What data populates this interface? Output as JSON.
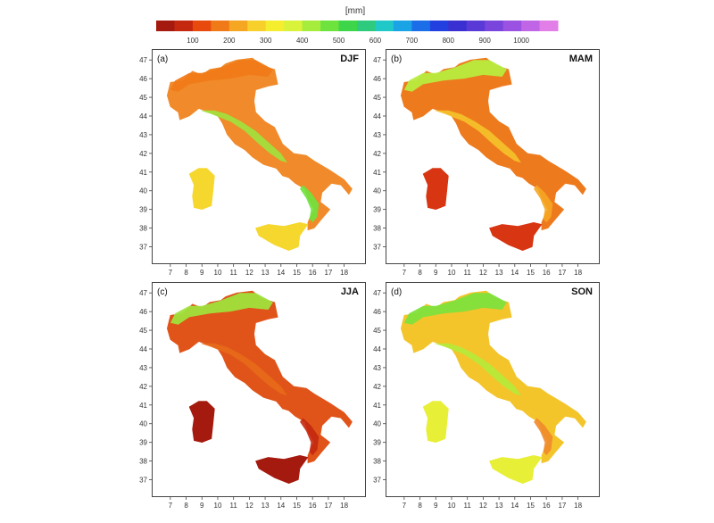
{
  "colorbar": {
    "unit": "[mm]",
    "tick_labels": [
      "100",
      "200",
      "300",
      "400",
      "500",
      "600",
      "700",
      "800",
      "900",
      "1000"
    ],
    "colors": [
      "#a51a0e",
      "#c4280f",
      "#e84a0d",
      "#f07a18",
      "#f5a623",
      "#f8d02b",
      "#f5ee2e",
      "#d9f23a",
      "#a5ec3c",
      "#6ee33d",
      "#3dd64a",
      "#2ecb7f",
      "#20c8c8",
      "#1aa4e6",
      "#1b6ee8",
      "#2240e0",
      "#3a2fd0",
      "#5a3ad6",
      "#7a45dc",
      "#9b52e2",
      "#c065e6",
      "#e17ee8"
    ]
  },
  "axes": {
    "lon_ticks": [
      "7",
      "8",
      "9",
      "10",
      "11",
      "12",
      "13",
      "14",
      "15",
      "16",
      "17",
      "18"
    ],
    "lat_ticks": [
      "47",
      "46",
      "45",
      "44",
      "43",
      "42",
      "41",
      "40",
      "39",
      "38",
      "37"
    ]
  },
  "panels": [
    {
      "letter": "(a)",
      "season": "DJF",
      "fill": "#f08a2a",
      "alpine": "#f07a18",
      "apennine": "#9fe23c",
      "south": "#6ee33d",
      "islands": "#f5d72e"
    },
    {
      "letter": "(b)",
      "season": "MAM",
      "fill": "#ee7a1e",
      "alpine": "#b7ec3e",
      "apennine": "#f5c32a",
      "south": "#f5a623",
      "islands": "#d83512"
    },
    {
      "letter": "(c)",
      "season": "JJA",
      "fill": "#e0541a",
      "alpine": "#9fe23c",
      "apennine": "#e86a1a",
      "south": "#c4280f",
      "islands": "#a51a0e"
    },
    {
      "letter": "(d)",
      "season": "SON",
      "fill": "#f3c52b",
      "alpine": "#7ee23c",
      "apennine": "#b5ea3b",
      "south": "#f08a2a",
      "islands": "#e8ef37"
    }
  ]
}
